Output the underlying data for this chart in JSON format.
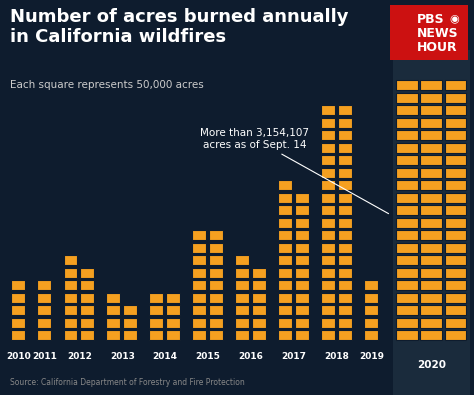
{
  "title_line1": "Number of acres burned annually",
  "title_line2": "in California wildfires",
  "subtitle": "Each square represents 50,000 acres",
  "annotation_text": "More than 3,154,107\nacres as of Sept. 14",
  "source_text": "Source: California Department of Forestry and Fire Protection",
  "background_color": "#0e1c2e",
  "square_color": "#f5a020",
  "bg_2020_color": "#1a2b3c",
  "years": [
    2010,
    2011,
    2012,
    2013,
    2014,
    2015,
    2016,
    2017,
    2018,
    2019,
    2020
  ],
  "acres": [
    253321,
    253321,
    669534,
    325484,
    380000,
    880899,
    669534,
    1248606,
    1893913,
    253321,
    3154107
  ],
  "squares_per_acre": 50000,
  "cols": [
    1,
    1,
    2,
    2,
    2,
    2,
    2,
    2,
    2,
    1,
    3
  ],
  "title_color": "#ffffff",
  "subtitle_color": "#cccccc",
  "source_color": "#888888",
  "pbs_text_color": "#ffffff",
  "pbs_bg_color": "#cc1111"
}
